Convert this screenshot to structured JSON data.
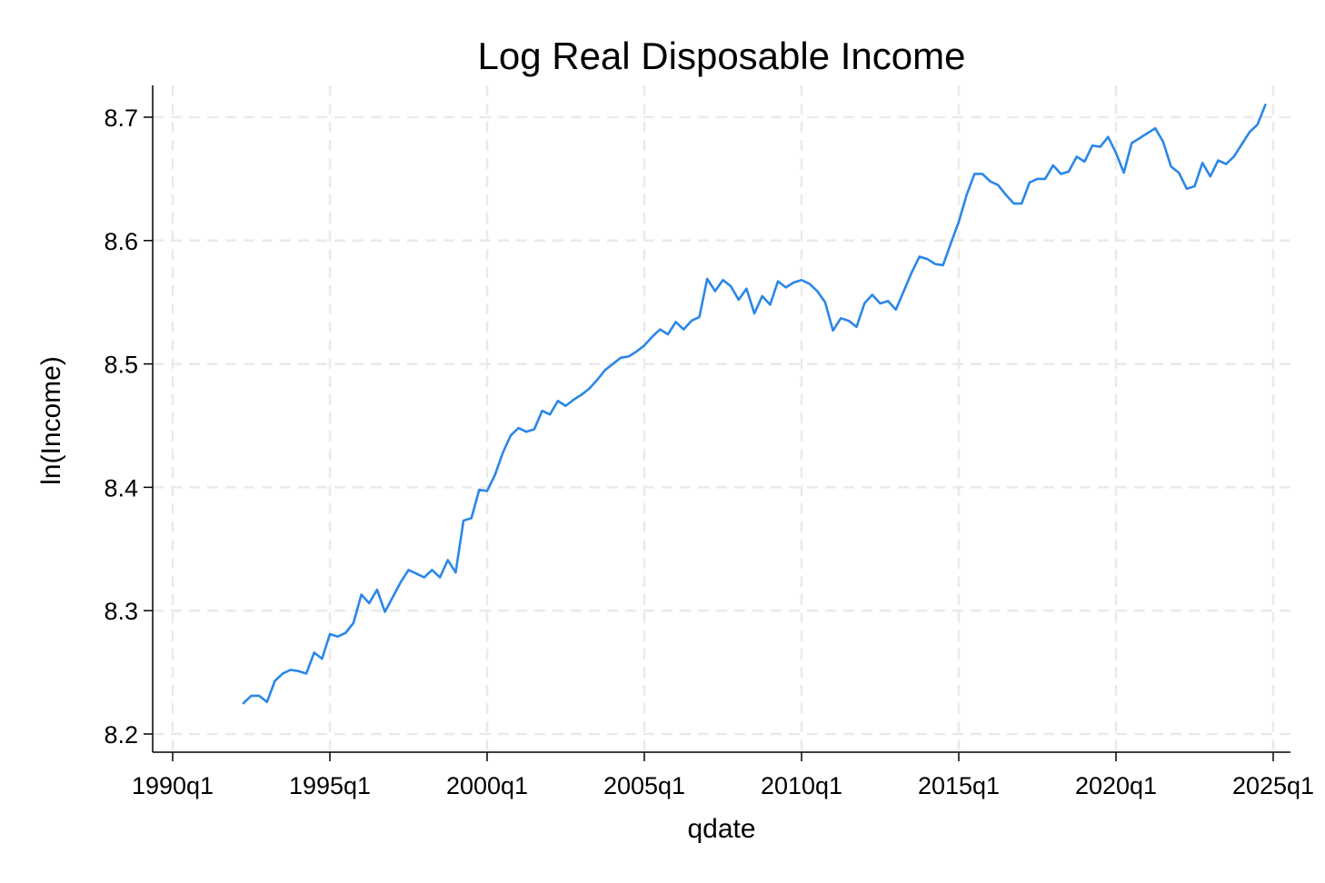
{
  "chart_data": {
    "type": "line",
    "title": "Log Real Disposable Income",
    "xlabel": "qdate",
    "ylabel": "ln(Income)",
    "x_ticks": [
      "1990q1",
      "1995q1",
      "2000q1",
      "2005q1",
      "2010q1",
      "2015q1",
      "2020q1",
      "2025q1"
    ],
    "y_ticks": [
      "8.2",
      "8.3",
      "8.4",
      "8.5",
      "8.6",
      "8.7"
    ],
    "xlim": [
      "1990q1",
      "2025q1"
    ],
    "ylim": [
      8.2,
      8.7
    ],
    "grid": true,
    "line_color": "#2a87e8",
    "x_start": "1992q2",
    "x_frequency": "quarterly",
    "series": [
      {
        "values": [
          8.225,
          8.231,
          8.231,
          8.226,
          8.243,
          8.249,
          8.252,
          8.251,
          8.249,
          8.266,
          8.261,
          8.281,
          8.279,
          8.282,
          8.29,
          8.313,
          8.306,
          8.317,
          8.299,
          8.311,
          8.323,
          8.333,
          8.33,
          8.327,
          8.333,
          8.327,
          8.341,
          8.331,
          8.373,
          8.375,
          8.398,
          8.397,
          8.41,
          8.428,
          8.442,
          8.448,
          8.445,
          8.447,
          8.462,
          8.459,
          8.47,
          8.466,
          8.471,
          8.475,
          8.48,
          8.487,
          8.495,
          8.5,
          8.505,
          8.506,
          8.51,
          8.515,
          8.522,
          8.528,
          8.524,
          8.534,
          8.528,
          8.535,
          8.538,
          8.569,
          8.559,
          8.568,
          8.563,
          8.552,
          8.561,
          8.541,
          8.555,
          8.548,
          8.567,
          8.562,
          8.566,
          8.568,
          8.565,
          8.559,
          8.55,
          8.527,
          8.537,
          8.535,
          8.53,
          8.549,
          8.556,
          8.549,
          8.551,
          8.544,
          8.559,
          8.574,
          8.587,
          8.585,
          8.581,
          8.58,
          8.598,
          8.615,
          8.637,
          8.654,
          8.654,
          8.648,
          8.645,
          8.637,
          8.63,
          8.63,
          8.647,
          8.65,
          8.65,
          8.661,
          8.654,
          8.656,
          8.668,
          8.664,
          8.677,
          8.676,
          8.684,
          8.671,
          8.655,
          8.679,
          8.683,
          8.687,
          8.691,
          8.68,
          8.66,
          8.655,
          8.642,
          8.644,
          8.663,
          8.652,
          8.665,
          8.662,
          8.668,
          8.678,
          8.688,
          8.694,
          8.71
        ]
      }
    ]
  }
}
